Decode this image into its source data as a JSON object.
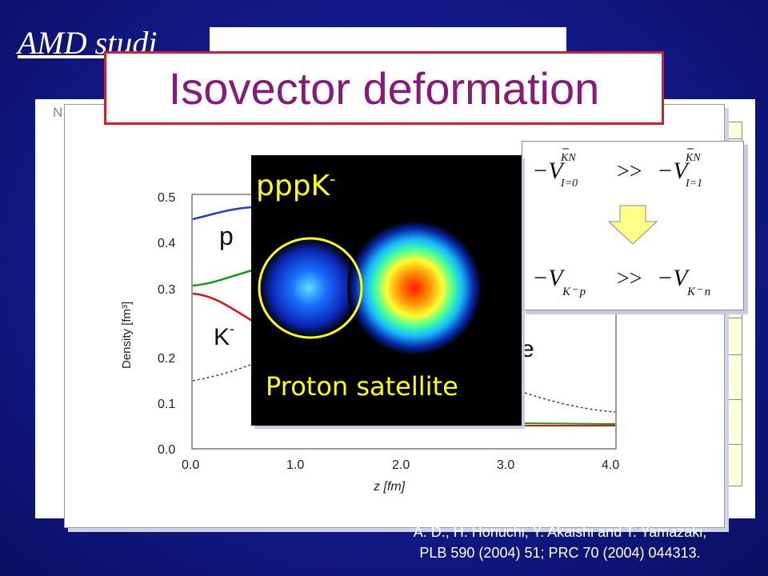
{
  "slide": {
    "heading": "AMD studi",
    "back_panel_label": "N",
    "title": "Isovector deformation"
  },
  "density_plot": {
    "ylabel": "Density [fm³]",
    "xlabel": "z [fm]",
    "x_ticks": [
      "0.0",
      "1.0",
      "2.0",
      "3.0",
      "4.0"
    ],
    "y_ticks": [
      "0.0",
      "0.1",
      "0.2",
      "0.3",
      "0.4",
      "0.5"
    ],
    "label_p": "p",
    "label_k": "K",
    "label_k_sup": "-",
    "label_e": "e"
  },
  "satellite_panel": {
    "label": "pppK",
    "label_sup": "-",
    "caption": "Proton satellite"
  },
  "formula": {
    "line1_left": "−V",
    "line1_left_sup": "KN",
    "line1_left_sub": "I=0",
    "relation": ">>",
    "line1_right": "−V",
    "line1_right_sup": "KN",
    "line1_right_sub": "I=1",
    "line2_left": "−V",
    "line2_left_sub": "K⁻ p",
    "line2_right": "−V",
    "line2_right_sub": "K⁻ n"
  },
  "citation": {
    "line1": "A. D., H. Horiuchi, Y. Akaishi and T. Yamazaki,",
    "line2": "PLB 590 (2004) 51; PRC 70 (2004) 044313."
  },
  "colors": {
    "title_text": "#8a1a7a",
    "title_border": "#d02030",
    "highlight": "#ffff00",
    "proton_curve": "#1f3fd0",
    "neutron_curve": "#1a9a1a",
    "kaon_curve": "#e01010"
  }
}
